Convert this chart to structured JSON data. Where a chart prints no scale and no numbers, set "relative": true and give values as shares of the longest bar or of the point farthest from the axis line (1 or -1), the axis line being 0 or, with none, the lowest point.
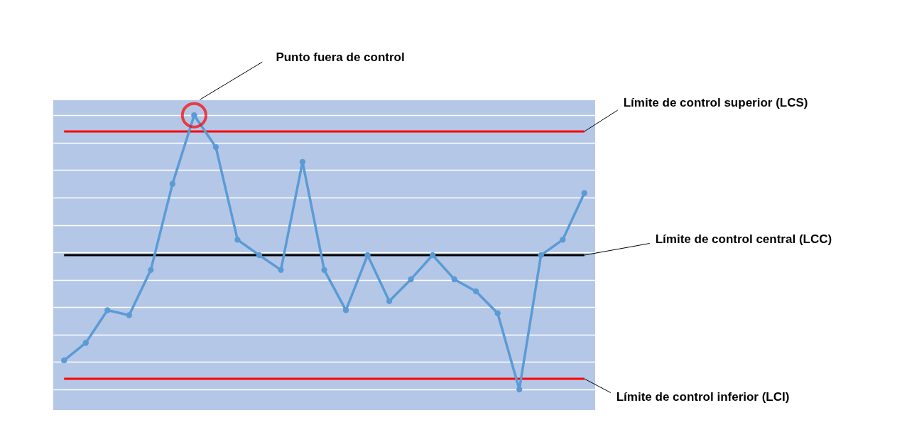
{
  "chart_data": {
    "type": "line",
    "relative": true,
    "categories": [
      null,
      null,
      null,
      null,
      null,
      null,
      null,
      null,
      null,
      null,
      null,
      null,
      null,
      null,
      null,
      null,
      null,
      null,
      null,
      null,
      null,
      null,
      null,
      null,
      null
    ],
    "series": [
      {
        "color": "#5b9bd5",
        "values": [
          0.106,
          0.17,
          0.289,
          0.271,
          0.436,
          0.75,
          1,
          0.884,
          0.546,
          0.49,
          0.436,
          0.83,
          0.436,
          0.289,
          0.49,
          0.322,
          0.402,
          0.49,
          0.402,
          0.358,
          0.278,
          0,
          0.49,
          0.546,
          0.716
        ]
      }
    ],
    "ref_lines": [
      {
        "axis": "y",
        "value": 0.941,
        "label": "Límite de control superior (LCS)",
        "color": "#ff0000"
      },
      {
        "axis": "y",
        "value": 0.49,
        "label": "Límite de control central (LCC)",
        "color": "#000000"
      },
      {
        "axis": "y",
        "value": 0.039,
        "label": "Límite de control inferior (LCI)",
        "color": "#ff0000"
      }
    ],
    "annotations": [
      "Punto fuera de control"
    ],
    "grid": "y",
    "marker": "circle",
    "line_style": "solid"
  }
}
